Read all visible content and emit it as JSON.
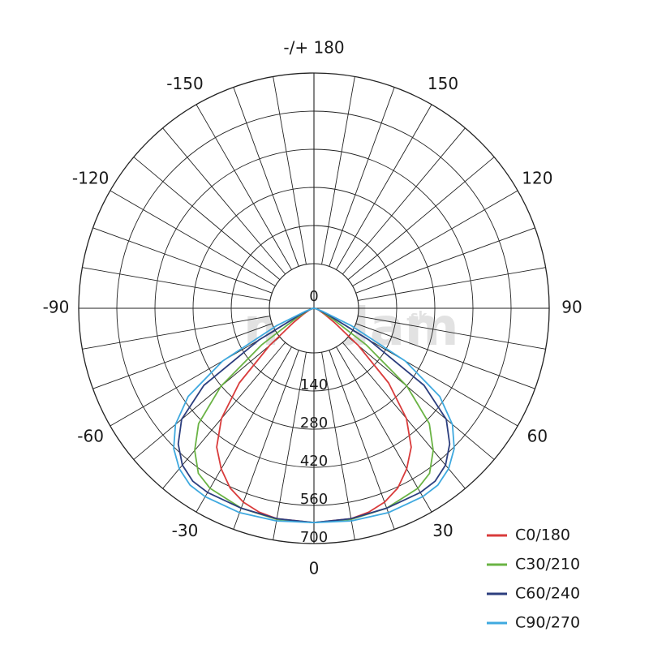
{
  "chart_data": {
    "type": "polar",
    "watermark": "madam",
    "watermark_suffix": ".sk",
    "angle_labels": [
      {
        "angle": 180,
        "text": "-/+ 180"
      },
      {
        "angle": -150,
        "text": "-150"
      },
      {
        "angle": 150,
        "text": "150"
      },
      {
        "angle": -120,
        "text": "-120"
      },
      {
        "angle": 120,
        "text": "120"
      },
      {
        "angle": -90,
        "text": "-90"
      },
      {
        "angle": 90,
        "text": "90"
      },
      {
        "angle": -60,
        "text": "-60"
      },
      {
        "angle": 60,
        "text": "60"
      },
      {
        "angle": -30,
        "text": "-30"
      },
      {
        "angle": 30,
        "text": "30"
      },
      {
        "angle": 0,
        "text": "0"
      }
    ],
    "radial_ticks": [
      "0",
      "140",
      "280",
      "420",
      "560",
      "700"
    ],
    "radial_values": [
      0,
      140,
      280,
      420,
      560,
      700
    ],
    "rmax": 700,
    "grid_angle_step": 10,
    "series": [
      {
        "name": "C0/180",
        "color": "#d93b3b",
        "points": [
          [
            -90,
            0
          ],
          [
            -80,
            5
          ],
          [
            -70,
            15
          ],
          [
            -60,
            40
          ],
          [
            -55,
            80
          ],
          [
            -50,
            180
          ],
          [
            -45,
            330
          ],
          [
            -40,
            450
          ],
          [
            -35,
            530
          ],
          [
            -30,
            580
          ],
          [
            -25,
            620
          ],
          [
            -20,
            645
          ],
          [
            -15,
            660
          ],
          [
            -10,
            668
          ],
          [
            0,
            670
          ],
          [
            10,
            668
          ],
          [
            15,
            660
          ],
          [
            20,
            645
          ],
          [
            25,
            620
          ],
          [
            30,
            580
          ],
          [
            35,
            530
          ],
          [
            40,
            450
          ],
          [
            45,
            330
          ],
          [
            50,
            180
          ],
          [
            55,
            80
          ],
          [
            60,
            40
          ],
          [
            70,
            15
          ],
          [
            80,
            5
          ],
          [
            90,
            0
          ]
        ]
      },
      {
        "name": "C30/210",
        "color": "#6ab344",
        "points": [
          [
            -90,
            0
          ],
          [
            -80,
            5
          ],
          [
            -70,
            20
          ],
          [
            -60,
            70
          ],
          [
            -55,
            200
          ],
          [
            -50,
            380
          ],
          [
            -45,
            510
          ],
          [
            -40,
            580
          ],
          [
            -35,
            630
          ],
          [
            -30,
            650
          ],
          [
            -20,
            665
          ],
          [
            -10,
            670
          ],
          [
            0,
            670
          ],
          [
            10,
            670
          ],
          [
            20,
            665
          ],
          [
            30,
            650
          ],
          [
            35,
            630
          ],
          [
            40,
            580
          ],
          [
            45,
            510
          ],
          [
            50,
            380
          ],
          [
            55,
            200
          ],
          [
            60,
            70
          ],
          [
            70,
            20
          ],
          [
            80,
            5
          ],
          [
            90,
            0
          ]
        ]
      },
      {
        "name": "C60/240",
        "color": "#2c3e7e",
        "points": [
          [
            -90,
            0
          ],
          [
            -80,
            5
          ],
          [
            -70,
            20
          ],
          [
            -65,
            50
          ],
          [
            -60,
            200
          ],
          [
            -55,
            420
          ],
          [
            -50,
            540
          ],
          [
            -45,
            600
          ],
          [
            -40,
            640
          ],
          [
            -35,
            660
          ],
          [
            -30,
            665
          ],
          [
            -20,
            665
          ],
          [
            -10,
            668
          ],
          [
            0,
            670
          ],
          [
            10,
            668
          ],
          [
            20,
            665
          ],
          [
            30,
            665
          ],
          [
            35,
            660
          ],
          [
            40,
            640
          ],
          [
            45,
            600
          ],
          [
            50,
            540
          ],
          [
            55,
            420
          ],
          [
            60,
            200
          ],
          [
            65,
            50
          ],
          [
            70,
            20
          ],
          [
            80,
            5
          ],
          [
            90,
            0
          ]
        ]
      },
      {
        "name": "C90/270",
        "color": "#3fa9df",
        "points": [
          [
            -90,
            0
          ],
          [
            -80,
            5
          ],
          [
            -70,
            30
          ],
          [
            -65,
            130
          ],
          [
            -60,
            330
          ],
          [
            -55,
            480
          ],
          [
            -50,
            565
          ],
          [
            -45,
            620
          ],
          [
            -40,
            655
          ],
          [
            -35,
            675
          ],
          [
            -30,
            680
          ],
          [
            -20,
            680
          ],
          [
            -10,
            675
          ],
          [
            0,
            670
          ],
          [
            10,
            675
          ],
          [
            20,
            680
          ],
          [
            30,
            680
          ],
          [
            35,
            675
          ],
          [
            40,
            655
          ],
          [
            45,
            620
          ],
          [
            50,
            565
          ],
          [
            55,
            480
          ],
          [
            60,
            330
          ],
          [
            65,
            130
          ],
          [
            70,
            30
          ],
          [
            80,
            5
          ],
          [
            90,
            0
          ]
        ]
      }
    ]
  }
}
